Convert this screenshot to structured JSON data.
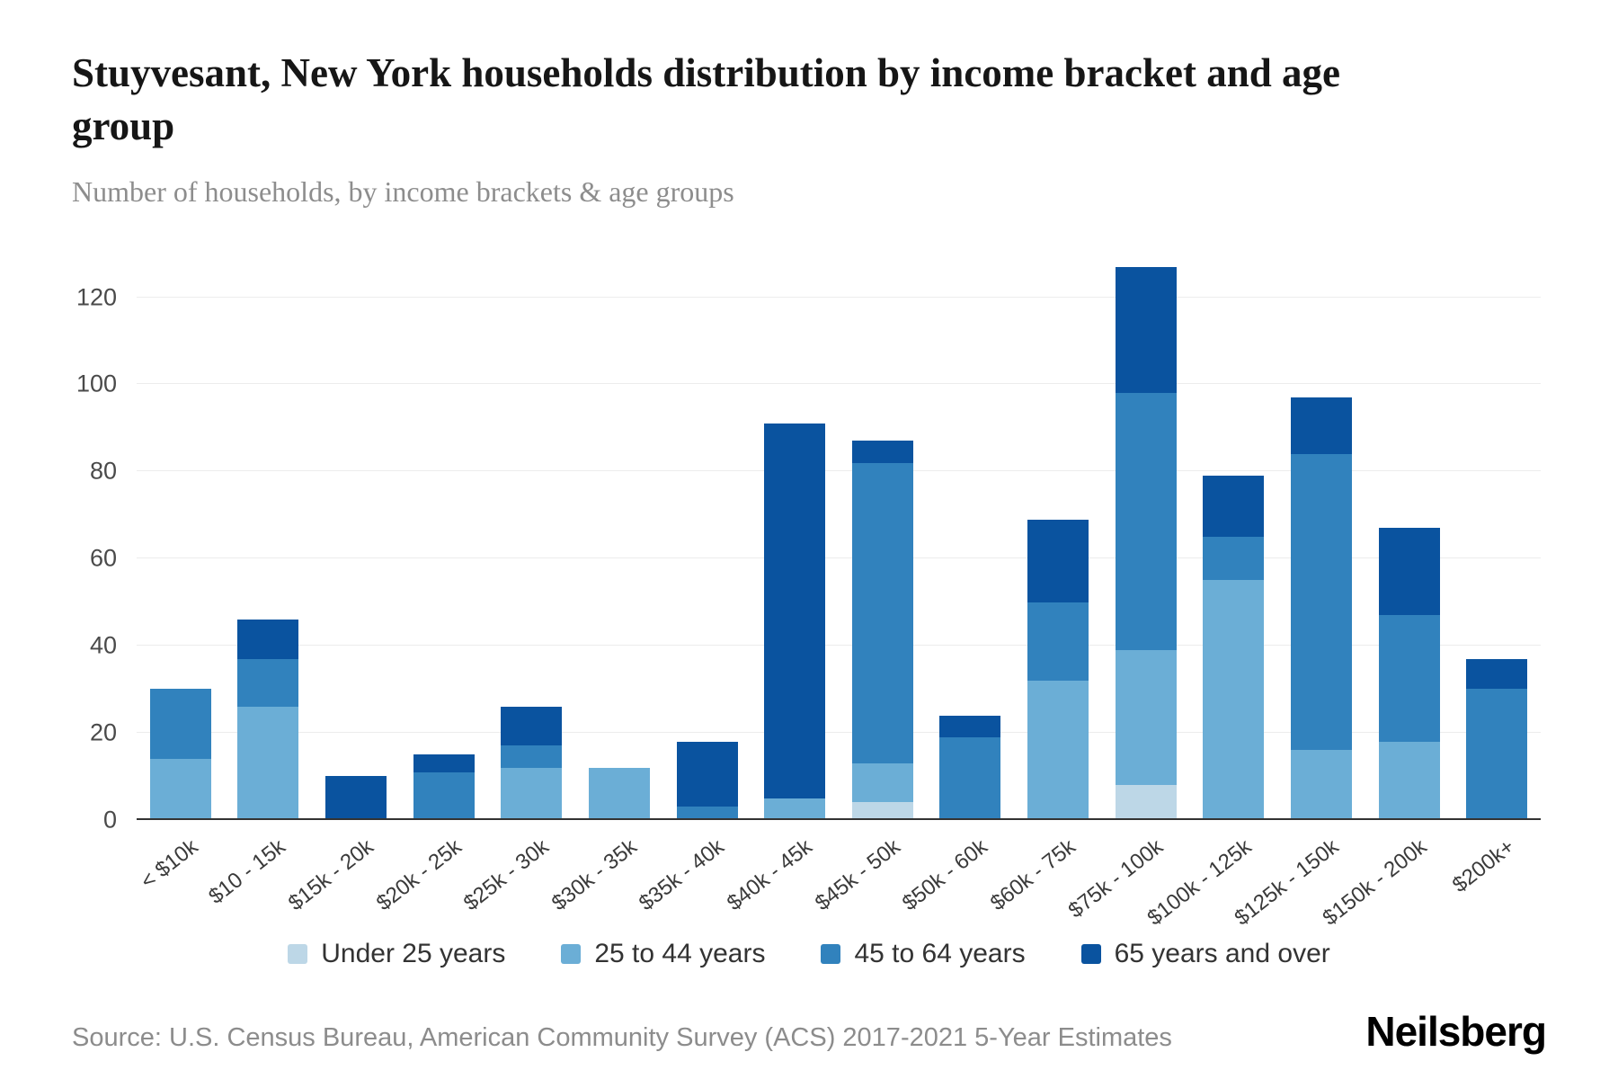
{
  "header": {
    "title": "Stuyvesant, New York households distribution by income bracket and age group",
    "subtitle": "Number of households, by income brackets & age groups"
  },
  "chart_data": {
    "type": "bar",
    "stacked": true,
    "title": "Stuyvesant, New York households distribution by income bracket and age group",
    "xlabel": "",
    "ylabel": "",
    "ylim": [
      0,
      128
    ],
    "yticks": [
      0,
      20,
      40,
      60,
      80,
      100,
      120
    ],
    "grid": true,
    "legend_position": "bottom",
    "categories": [
      "< $10k",
      "$10 - 15k",
      "$15k - 20k",
      "$20k - 25k",
      "$25k - 30k",
      "$30k - 35k",
      "$35k - 40k",
      "$40k - 45k",
      "$45k - 50k",
      "$50k - 60k",
      "$60k - 75k",
      "$75k - 100k",
      "$100k - 125k",
      "$125k - 150k",
      "$150k - 200k",
      "$200k+"
    ],
    "series": [
      {
        "name": "Under 25 years",
        "color": "#bdd7e7",
        "values": [
          0,
          0,
          0,
          0,
          0,
          0,
          0,
          0,
          4,
          0,
          0,
          8,
          0,
          0,
          0,
          0
        ]
      },
      {
        "name": "25 to 44 years",
        "color": "#6baed6",
        "values": [
          14,
          26,
          0,
          0,
          12,
          12,
          0,
          5,
          9,
          0,
          32,
          31,
          55,
          16,
          18,
          0
        ]
      },
      {
        "name": "45 to 64 years",
        "color": "#3182bd",
        "values": [
          16,
          11,
          0,
          11,
          5,
          0,
          3,
          0,
          69,
          19,
          18,
          59,
          10,
          68,
          29,
          30
        ]
      },
      {
        "name": "65 years and over",
        "color": "#0a539f",
        "values": [
          0,
          9,
          10,
          4,
          9,
          0,
          15,
          86,
          5,
          5,
          19,
          29,
          14,
          13,
          20,
          7
        ]
      }
    ],
    "totals": [
      30,
      46,
      10,
      15,
      26,
      12,
      18,
      91,
      87,
      24,
      69,
      127,
      79,
      97,
      67,
      37
    ]
  },
  "footer": {
    "source": "Source: U.S. Census Bureau, American Community Survey (ACS) 2017-2021 5-Year Estimates",
    "logo": "Neilsberg"
  }
}
